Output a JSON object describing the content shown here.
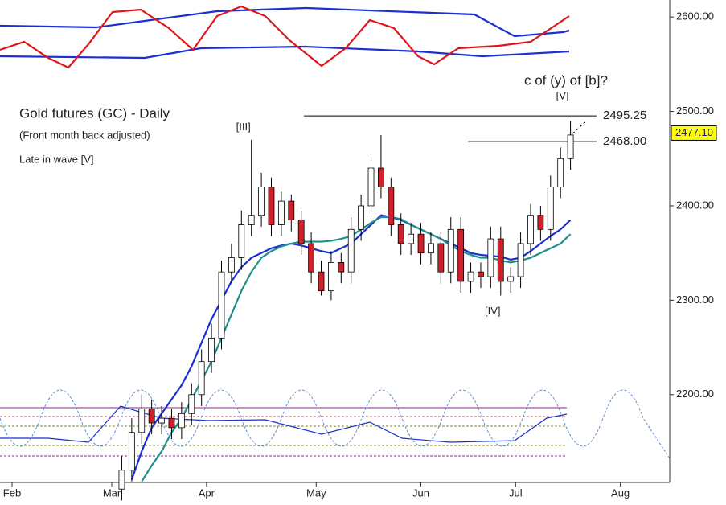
{
  "chart_data": {
    "type": "candlestick",
    "title": "Gold futures (GC) - Daily",
    "subtitle": "(Front month back adjusted)",
    "annotation": "Late in wave [V]",
    "question": "c of (y) of [b]?",
    "wave_labels": [
      {
        "text": "[III]",
        "x": 48
      },
      {
        "text": "[IV]",
        "x": 98
      },
      {
        "text": "[V]",
        "x": 112
      }
    ],
    "levels": [
      {
        "value": 2495.25,
        "label": "2495.25"
      },
      {
        "value": 2468,
        "label": "2468.00"
      }
    ],
    "last_price": {
      "value": 2477.1,
      "label": "2477.10"
    },
    "x": [
      22,
      24,
      26,
      28,
      30,
      32,
      34,
      36,
      38,
      40,
      42,
      44,
      46,
      48,
      50,
      52,
      54,
      56,
      58,
      60,
      62,
      64,
      66,
      68,
      70,
      72,
      74,
      76,
      78,
      80,
      82,
      84,
      86,
      88,
      90,
      92,
      94,
      96,
      98,
      100,
      102,
      104,
      106,
      108,
      110,
      112
    ],
    "open": [
      2100,
      2120,
      2160,
      2185,
      2170,
      2175,
      2165,
      2180,
      2200,
      2235,
      2260,
      2330,
      2345,
      2380,
      2390,
      2420,
      2380,
      2405,
      2385,
      2360,
      2330,
      2310,
      2340,
      2330,
      2375,
      2400,
      2440,
      2420,
      2380,
      2360,
      2370,
      2350,
      2360,
      2330,
      2375,
      2320,
      2330,
      2325,
      2365,
      2320,
      2325,
      2360,
      2390,
      2375,
      2420,
      2450
    ],
    "high": [
      2135,
      2175,
      2200,
      2195,
      2188,
      2185,
      2192,
      2212,
      2248,
      2275,
      2342,
      2360,
      2395,
      2470,
      2435,
      2430,
      2415,
      2412,
      2395,
      2372,
      2342,
      2352,
      2350,
      2388,
      2412,
      2452,
      2475,
      2430,
      2392,
      2382,
      2382,
      2372,
      2372,
      2388,
      2388,
      2340,
      2340,
      2378,
      2378,
      2335,
      2372,
      2402,
      2400,
      2432,
      2462,
      2490
    ],
    "low": [
      2088,
      2108,
      2148,
      2158,
      2158,
      2153,
      2153,
      2168,
      2188,
      2223,
      2248,
      2318,
      2332,
      2368,
      2378,
      2368,
      2368,
      2373,
      2348,
      2318,
      2305,
      2300,
      2318,
      2318,
      2363,
      2388,
      2408,
      2368,
      2348,
      2348,
      2338,
      2338,
      2318,
      2318,
      2308,
      2308,
      2313,
      2313,
      2305,
      2308,
      2313,
      2348,
      2363,
      2363,
      2408,
      2438
    ],
    "close": [
      2120,
      2160,
      2185,
      2170,
      2175,
      2165,
      2180,
      2200,
      2235,
      2260,
      2330,
      2345,
      2380,
      2390,
      2420,
      2380,
      2405,
      2385,
      2360,
      2330,
      2310,
      2340,
      2330,
      2375,
      2400,
      2440,
      2420,
      2380,
      2360,
      2370,
      2350,
      2360,
      2330,
      2375,
      2320,
      2330,
      2325,
      2365,
      2320,
      2325,
      2360,
      2390,
      2375,
      2420,
      2450,
      2475
    ],
    "up_color": "#ffffff",
    "down_color": "#d0202a",
    "ma_lines": [
      {
        "color": "#1c2fd0",
        "values": [
          null,
          2110,
          2140,
          2165,
          2180,
          2195,
          2210,
          2230,
          2255,
          2280,
          2300,
          2320,
          2335,
          2345,
          2350,
          2355,
          2358,
          2360,
          2358,
          2355,
          2352,
          2350,
          2355,
          2360,
          2370,
          2380,
          2390,
          2388,
          2385,
          2380,
          2375,
          2370,
          2365,
          2360,
          2355,
          2350,
          2348,
          2347,
          2346,
          2343,
          2345,
          2352,
          2360,
          2368,
          2375,
          2385
        ]
      },
      {
        "color": "#1f8f8a",
        "values": [
          null,
          null,
          2108,
          2125,
          2140,
          2160,
          2175,
          2195,
          2215,
          2235,
          2260,
          2285,
          2310,
          2330,
          2345,
          2352,
          2357,
          2360,
          2362,
          2362,
          2362,
          2363,
          2365,
          2368,
          2375,
          2382,
          2388,
          2388,
          2386,
          2380,
          2375,
          2370,
          2365,
          2358,
          2352,
          2348,
          2345,
          2345,
          2342,
          2340,
          2342,
          2345,
          2350,
          2355,
          2360,
          2370
        ]
      }
    ],
    "xlim": [
      -2.42,
      131.9
    ],
    "xticks": [
      {
        "value": 0,
        "label": "Feb"
      },
      {
        "value": 20,
        "label": "Mar"
      },
      {
        "value": 39,
        "label": "Apr"
      },
      {
        "value": 61,
        "label": "May"
      },
      {
        "value": 82,
        "label": "Jun"
      },
      {
        "value": 101,
        "label": "Jul"
      },
      {
        "value": 122,
        "label": "Aug"
      }
    ],
    "ylim": [
      2107,
      2618
    ],
    "yticks": [
      {
        "value": 2200,
        "label": "2200.00"
      },
      {
        "value": 2300,
        "label": "2300.00"
      },
      {
        "value": 2400,
        "label": "2400.00"
      },
      {
        "value": 2500,
        "label": "2500.00"
      },
      {
        "value": 2600,
        "label": "2600.00"
      }
    ]
  }
}
